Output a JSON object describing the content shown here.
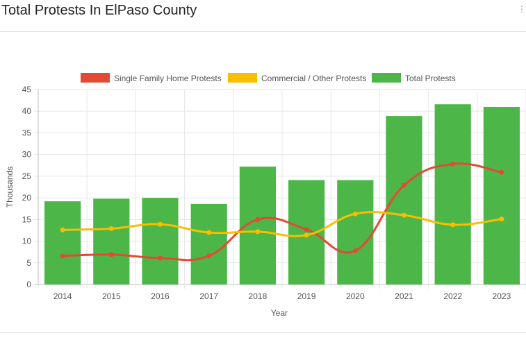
{
  "header": {
    "title": "Total Protests In ElPaso County",
    "menu_icon": "vertical-dots-icon"
  },
  "chart_data": {
    "type": "bar",
    "categories": [
      "2014",
      "2015",
      "2016",
      "2017",
      "2018",
      "2019",
      "2020",
      "2021",
      "2022",
      "2023"
    ],
    "xlabel": "Year",
    "ylabel": "Thousands",
    "ylim": [
      0,
      45
    ],
    "yticks": [
      0,
      5,
      10,
      15,
      20,
      25,
      30,
      35,
      40,
      45
    ],
    "grid": true,
    "legend_position": "top",
    "series": [
      {
        "name": "Single Family Home Protests",
        "type": "line",
        "color": "#e34a33",
        "values": [
          6.6,
          6.9,
          6.1,
          6.6,
          15.0,
          12.7,
          7.8,
          22.9,
          27.8,
          25.9
        ]
      },
      {
        "name": "Commercial / Other Protests",
        "type": "line",
        "color": "#f9be00",
        "values": [
          12.6,
          12.9,
          13.9,
          12.0,
          12.2,
          11.4,
          16.3,
          16.0,
          13.8,
          15.1
        ]
      },
      {
        "name": "Total Protests",
        "type": "bar",
        "color": "#4cb748",
        "values": [
          19.2,
          19.8,
          20.0,
          18.6,
          27.2,
          24.1,
          24.1,
          38.9,
          41.6,
          41.0
        ]
      }
    ]
  }
}
